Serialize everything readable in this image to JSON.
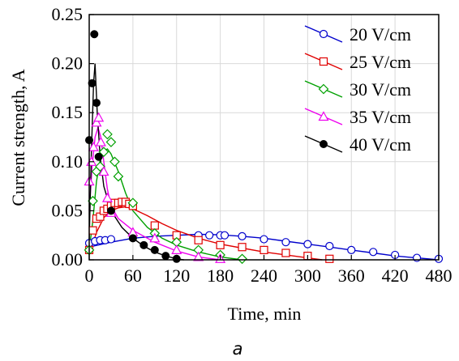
{
  "chart_data": {
    "type": "line",
    "xlabel": "Time, min",
    "ylabel": "Current strength, A",
    "caption": "a",
    "xlim": [
      0,
      480
    ],
    "ylim": [
      0,
      0.25
    ],
    "xticks": [
      "0",
      "60",
      "120",
      "180",
      "240",
      "300",
      "360",
      "420",
      "480"
    ],
    "yticks": [
      "0.00",
      "0.05",
      "0.10",
      "0.15",
      "0.20",
      "0.25"
    ],
    "grid": true,
    "legend_position": "top-right",
    "series": [
      {
        "name": "20 V/cm",
        "color": "#0000cc",
        "marker": "circle-open",
        "points": [
          [
            0,
            0.017
          ],
          [
            8,
            0.019
          ],
          [
            15,
            0.02
          ],
          [
            22,
            0.02
          ],
          [
            30,
            0.021
          ],
          [
            150,
            0.025
          ],
          [
            165,
            0.025
          ],
          [
            180,
            0.025
          ],
          [
            186,
            0.025
          ],
          [
            210,
            0.024
          ],
          [
            240,
            0.021
          ],
          [
            270,
            0.018
          ],
          [
            300,
            0.016
          ],
          [
            330,
            0.014
          ],
          [
            360,
            0.01
          ],
          [
            390,
            0.008
          ],
          [
            420,
            0.005
          ],
          [
            450,
            0.002
          ],
          [
            480,
            0.001
          ]
        ],
        "curve": [
          [
            0,
            0.013
          ],
          [
            30,
            0.018
          ],
          [
            60,
            0.022
          ],
          [
            90,
            0.024
          ],
          [
            120,
            0.025
          ],
          [
            150,
            0.026
          ],
          [
            180,
            0.0255
          ],
          [
            210,
            0.024
          ],
          [
            240,
            0.022
          ],
          [
            270,
            0.019
          ],
          [
            300,
            0.016
          ],
          [
            330,
            0.013
          ],
          [
            360,
            0.01
          ],
          [
            390,
            0.007
          ],
          [
            420,
            0.004
          ],
          [
            450,
            0.002
          ],
          [
            480,
            0.0
          ]
        ]
      },
      {
        "name": "25 V/cm",
        "color": "#e00000",
        "marker": "square-open",
        "points": [
          [
            0,
            0.01
          ],
          [
            5,
            0.03
          ],
          [
            10,
            0.042
          ],
          [
            15,
            0.044
          ],
          [
            20,
            0.05
          ],
          [
            25,
            0.052
          ],
          [
            30,
            0.055
          ],
          [
            35,
            0.058
          ],
          [
            40,
            0.058
          ],
          [
            45,
            0.059
          ],
          [
            50,
            0.059
          ],
          [
            55,
            0.057
          ],
          [
            60,
            0.055
          ],
          [
            90,
            0.035
          ],
          [
            120,
            0.025
          ],
          [
            150,
            0.02
          ],
          [
            180,
            0.015
          ],
          [
            210,
            0.013
          ],
          [
            240,
            0.01
          ],
          [
            270,
            0.007
          ],
          [
            300,
            0.004
          ],
          [
            330,
            0.001
          ]
        ],
        "curve": [
          [
            0,
            0.006
          ],
          [
            10,
            0.028
          ],
          [
            20,
            0.043
          ],
          [
            30,
            0.05
          ],
          [
            40,
            0.053
          ],
          [
            50,
            0.054
          ],
          [
            60,
            0.052
          ],
          [
            80,
            0.045
          ],
          [
            100,
            0.037
          ],
          [
            120,
            0.03
          ],
          [
            150,
            0.022
          ],
          [
            180,
            0.016
          ],
          [
            210,
            0.012
          ],
          [
            240,
            0.008
          ],
          [
            270,
            0.005
          ],
          [
            300,
            0.002
          ],
          [
            320,
            0.0
          ]
        ]
      },
      {
        "name": "30 V/cm",
        "color": "#00a000",
        "marker": "diamond-open",
        "points": [
          [
            0,
            0.01
          ],
          [
            5,
            0.06
          ],
          [
            10,
            0.09
          ],
          [
            15,
            0.095
          ],
          [
            20,
            0.11
          ],
          [
            25,
            0.128
          ],
          [
            30,
            0.12
          ],
          [
            35,
            0.1
          ],
          [
            40,
            0.085
          ],
          [
            60,
            0.058
          ],
          [
            90,
            0.027
          ],
          [
            120,
            0.018
          ],
          [
            150,
            0.01
          ],
          [
            180,
            0.005
          ],
          [
            210,
            0.001
          ]
        ],
        "curve": [
          [
            0,
            0.01
          ],
          [
            5,
            0.04
          ],
          [
            10,
            0.08
          ],
          [
            15,
            0.102
          ],
          [
            20,
            0.111
          ],
          [
            25,
            0.113
          ],
          [
            30,
            0.108
          ],
          [
            40,
            0.09
          ],
          [
            50,
            0.068
          ],
          [
            60,
            0.05
          ],
          [
            80,
            0.033
          ],
          [
            100,
            0.022
          ],
          [
            120,
            0.015
          ],
          [
            150,
            0.008
          ],
          [
            180,
            0.003
          ],
          [
            210,
            0.0
          ]
        ]
      },
      {
        "name": "35 V/cm",
        "color": "#ee00ee",
        "marker": "triangle-open",
        "points": [
          [
            0,
            0.08
          ],
          [
            3,
            0.1
          ],
          [
            6,
            0.115
          ],
          [
            10,
            0.14
          ],
          [
            13,
            0.145
          ],
          [
            16,
            0.12
          ],
          [
            20,
            0.09
          ],
          [
            25,
            0.063
          ],
          [
            30,
            0.048
          ],
          [
            60,
            0.028
          ],
          [
            90,
            0.022
          ],
          [
            120,
            0.01
          ],
          [
            150,
            0.003
          ],
          [
            180,
            0.001
          ]
        ],
        "curve": [
          [
            0,
            0.05
          ],
          [
            4,
            0.095
          ],
          [
            8,
            0.125
          ],
          [
            12,
            0.135
          ],
          [
            16,
            0.125
          ],
          [
            20,
            0.1
          ],
          [
            25,
            0.072
          ],
          [
            30,
            0.055
          ],
          [
            40,
            0.042
          ],
          [
            60,
            0.03
          ],
          [
            90,
            0.018
          ],
          [
            120,
            0.009
          ],
          [
            150,
            0.003
          ],
          [
            180,
            0.0
          ]
        ]
      },
      {
        "name": "40 V/cm",
        "color": "#000000",
        "marker": "circle-filled",
        "points": [
          [
            0,
            0.122
          ],
          [
            4,
            0.18
          ],
          [
            7,
            0.23
          ],
          [
            10,
            0.16
          ],
          [
            13,
            0.105
          ],
          [
            30,
            0.05
          ],
          [
            60,
            0.022
          ],
          [
            75,
            0.015
          ],
          [
            90,
            0.01
          ],
          [
            105,
            0.004
          ],
          [
            120,
            0.001
          ]
        ],
        "curve": [
          [
            0,
            0.02
          ],
          [
            3,
            0.11
          ],
          [
            6,
            0.18
          ],
          [
            8,
            0.2
          ],
          [
            11,
            0.15
          ],
          [
            15,
            0.105
          ],
          [
            20,
            0.075
          ],
          [
            30,
            0.05
          ],
          [
            45,
            0.033
          ],
          [
            60,
            0.022
          ],
          [
            75,
            0.014
          ],
          [
            90,
            0.008
          ],
          [
            105,
            0.004
          ],
          [
            120,
            0.001
          ],
          [
            130,
            0.0
          ]
        ]
      }
    ]
  }
}
